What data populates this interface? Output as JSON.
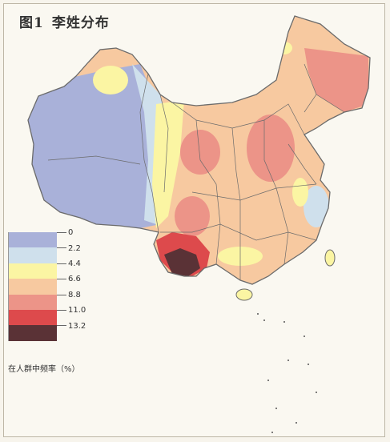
{
  "title": {
    "fig_no": "图1",
    "text": "李姓分布"
  },
  "legend": {
    "colors": [
      "#a9b1d9",
      "#cfe0ec",
      "#fbf5a3",
      "#f7c9a0",
      "#ec9488",
      "#dd4a4c",
      "#5a3236"
    ],
    "ticks": [
      "0",
      "2.2",
      "4.4",
      "6.6",
      "8.8",
      "11.0",
      "13.2"
    ],
    "caption": "在人群中频率（%）"
  },
  "map": {
    "colors": {
      "blue": "#a9b1d9",
      "light_blue": "#cfe0ec",
      "yellow": "#fbf5a3",
      "peach": "#f7c9a0",
      "salmon": "#ec9488",
      "red": "#dd4a4c",
      "dark": "#5a3236",
      "border": "#6b6b6b"
    }
  }
}
